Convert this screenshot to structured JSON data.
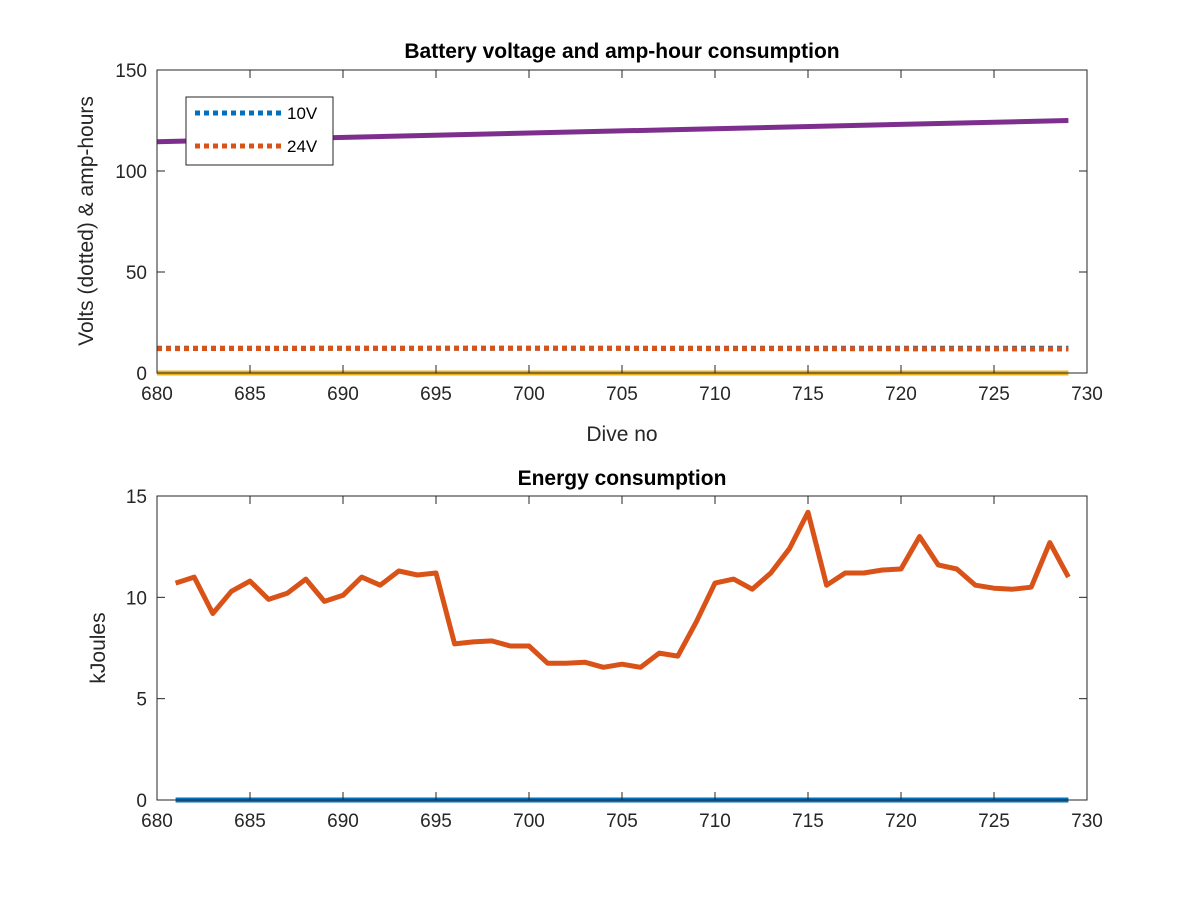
{
  "chart_data": [
    {
      "type": "line",
      "title": "Battery voltage and amp-hour consumption",
      "xlabel": "Dive no",
      "ylabel": "Volts (dotted) & amp-hours",
      "xlim": [
        680,
        730
      ],
      "ylim": [
        0,
        150
      ],
      "xticks": [
        680,
        685,
        690,
        695,
        700,
        705,
        710,
        715,
        720,
        725,
        730
      ],
      "yticks": [
        0,
        50,
        100,
        150
      ],
      "grid": false,
      "legend_position": "top-left",
      "series": [
        {
          "name": "10V",
          "style": "dotted",
          "color": "#0072BD",
          "x": [
            680,
            729
          ],
          "y": [
            12.3,
            12.3
          ],
          "in_legend": true
        },
        {
          "name": "24V",
          "style": "dotted",
          "color": "#D95319",
          "x": [
            680,
            690,
            700,
            710,
            720,
            729
          ],
          "y": [
            12.1,
            12.2,
            12.3,
            12.1,
            12.0,
            11.9
          ],
          "in_legend": true
        },
        {
          "name": "",
          "style": "solid",
          "color": "#7E2F8E",
          "x": [
            680,
            729
          ],
          "y": [
            114.5,
            125
          ],
          "in_legend": false
        },
        {
          "name": "",
          "style": "solid",
          "color": "#EDB120",
          "x": [
            680,
            729
          ],
          "y": [
            0,
            0
          ],
          "in_legend": false
        }
      ]
    },
    {
      "type": "line",
      "title": "Energy consumption",
      "xlabel": "",
      "ylabel": "kJoules",
      "xlim": [
        680,
        730
      ],
      "ylim": [
        0,
        15
      ],
      "xticks": [
        680,
        685,
        690,
        695,
        700,
        705,
        710,
        715,
        720,
        725,
        730
      ],
      "yticks": [
        0,
        5,
        10,
        15
      ],
      "grid": false,
      "series": [
        {
          "name": "",
          "style": "solid",
          "color": "#0072BD",
          "x": [
            681,
            729
          ],
          "y": [
            0,
            0
          ]
        },
        {
          "name": "",
          "style": "solid",
          "color": "#D95319",
          "x": [
            681,
            682,
            683,
            684,
            685,
            686,
            687,
            688,
            689,
            690,
            691,
            692,
            693,
            694,
            695,
            696,
            697,
            698,
            699,
            700,
            701,
            702,
            703,
            704,
            705,
            706,
            707,
            708,
            709,
            710,
            711,
            712,
            713,
            714,
            715,
            716,
            717,
            718,
            719,
            720,
            721,
            722,
            723,
            724,
            725,
            726,
            727,
            728,
            729
          ],
          "y": [
            10.7,
            11.0,
            9.2,
            10.3,
            10.8,
            9.9,
            10.2,
            10.9,
            9.8,
            10.1,
            11.0,
            10.6,
            11.3,
            11.1,
            11.2,
            7.7,
            7.8,
            7.85,
            7.6,
            7.6,
            6.75,
            6.75,
            6.8,
            6.55,
            6.7,
            6.55,
            7.25,
            7.1,
            8.8,
            10.7,
            10.9,
            10.4,
            11.2,
            12.4,
            14.2,
            10.6,
            11.2,
            11.2,
            11.35,
            11.4,
            13.0,
            11.6,
            11.4,
            10.6,
            10.45,
            10.4,
            10.5,
            12.7,
            11.0
          ]
        }
      ]
    }
  ]
}
